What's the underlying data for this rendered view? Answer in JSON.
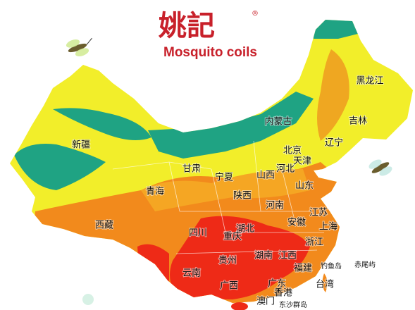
{
  "brand": {
    "logo": "姚記",
    "registered": "®",
    "tagline": "Mosquito coils"
  },
  "map": {
    "labels": [
      "黑龙江",
      "吉林",
      "内蒙古",
      "辽宁",
      "北京",
      "天津",
      "新疆",
      "甘肃",
      "宁夏",
      "山西",
      "河北",
      "青海",
      "山东",
      "陕西",
      "河南",
      "江苏",
      "西藏",
      "四川",
      "湖北",
      "安徽",
      "上海",
      "重庆",
      "浙江",
      "湖南",
      "江西",
      "贵州",
      "福建",
      "云南",
      "台湾",
      "广西",
      "广东",
      "香港",
      "澳门",
      "钓鱼岛",
      "赤尾屿",
      "东沙群岛"
    ]
  }
}
